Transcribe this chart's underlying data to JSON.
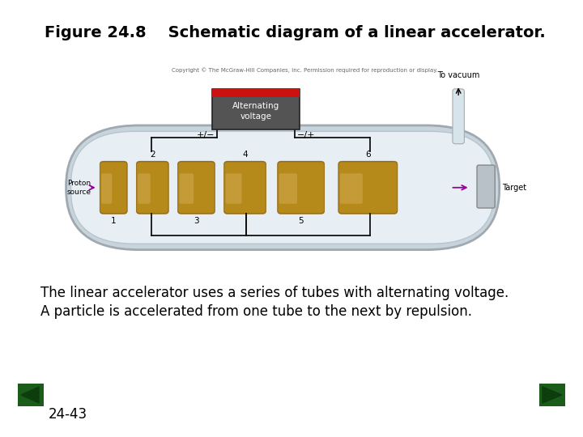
{
  "title": "Figure 24.8    Schematic diagram of a linear accelerator.",
  "title_fontsize": 14,
  "bg_color": "#ffffff",
  "desc_line1": "The linear accelerator uses a series of tubes with alternating voltage.",
  "desc_line2": "A particle is accelerated from one tube to the next by repulsion.",
  "desc_fontsize": 12,
  "page_label": "24-43",
  "nav_green_dark": "#1a5c1a",
  "nav_green_light": "#2d8b2d",
  "copyright_text": "Copyright © The McGraw-Hill Companies, Inc. Permission required for reproduction or display.",
  "tube_color": "#b5891a",
  "tube_highlight": "#d4aa50",
  "tube_shadow": "#8b6510",
  "shell_outer": "#d0d8e0",
  "shell_inner": "#e8eff4",
  "shell_edge": "#a0a8b0",
  "box_body": "#545454",
  "box_top": "#cc1111",
  "box_edge": "#222222",
  "wire_color": "#111111",
  "arrow_color": "#880088",
  "target_color": "#c0c8d0",
  "vacuum_tube_color": "#d8e4ec",
  "proton_arrow_color": "#990099"
}
